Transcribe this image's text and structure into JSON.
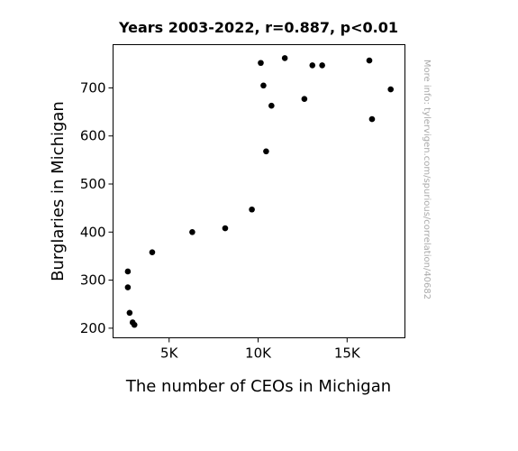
{
  "chart_data": {
    "type": "scatter",
    "title": "Years 2003-2022, r=0.887, p<0.01",
    "xlabel": "The number of CEOs in Michigan",
    "ylabel": "Burglaries in Michigan",
    "watermark": "More info: tylervigen.com/spurious/correlation/40682",
    "xlim": [
      1850,
      18250
    ],
    "ylim": [
      180,
      790
    ],
    "xticks": [
      {
        "value": 5000,
        "label": "5K"
      },
      {
        "value": 10000,
        "label": "10K"
      },
      {
        "value": 15000,
        "label": "15K"
      }
    ],
    "yticks": [
      {
        "value": 200,
        "label": "200"
      },
      {
        "value": 300,
        "label": "300"
      },
      {
        "value": 400,
        "label": "400"
      },
      {
        "value": 500,
        "label": "500"
      },
      {
        "value": 600,
        "label": "600"
      },
      {
        "value": 700,
        "label": "700"
      }
    ],
    "grid": false,
    "marker_color": "#000000",
    "points": [
      {
        "x": 2680,
        "y": 318
      },
      {
        "x": 2680,
        "y": 285
      },
      {
        "x": 2780,
        "y": 232
      },
      {
        "x": 2950,
        "y": 212
      },
      {
        "x": 3050,
        "y": 207
      },
      {
        "x": 4050,
        "y": 358
      },
      {
        "x": 6300,
        "y": 400
      },
      {
        "x": 8150,
        "y": 408
      },
      {
        "x": 9650,
        "y": 447
      },
      {
        "x": 10150,
        "y": 752
      },
      {
        "x": 10300,
        "y": 705
      },
      {
        "x": 10450,
        "y": 568
      },
      {
        "x": 10750,
        "y": 663
      },
      {
        "x": 11500,
        "y": 762
      },
      {
        "x": 12600,
        "y": 677
      },
      {
        "x": 13050,
        "y": 747
      },
      {
        "x": 13600,
        "y": 747
      },
      {
        "x": 16250,
        "y": 757
      },
      {
        "x": 16400,
        "y": 635
      },
      {
        "x": 17450,
        "y": 697
      }
    ]
  }
}
